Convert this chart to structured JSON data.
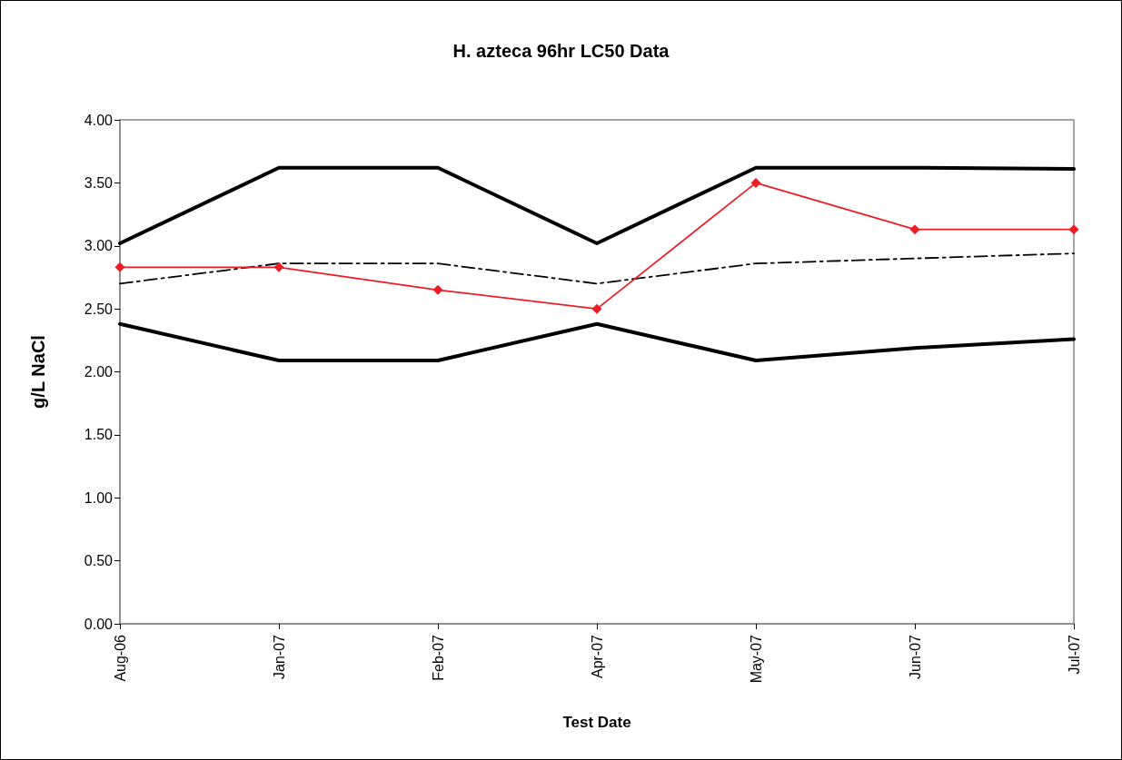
{
  "chart_data": {
    "type": "line",
    "title": "H. azteca 96hr LC50 Data",
    "xlabel": "Test Date",
    "ylabel": "g/L NaCl",
    "categories": [
      "Aug-06",
      "Jan-07",
      "Feb-07",
      "Apr-07",
      "May-07",
      "Jun-07",
      "Jul-07"
    ],
    "ylim": [
      0,
      4
    ],
    "yticks": [
      {
        "value": 0,
        "label": "0.00"
      },
      {
        "value": 0.5,
        "label": "0.50"
      },
      {
        "value": 1,
        "label": "1.00"
      },
      {
        "value": 1.5,
        "label": "1.50"
      },
      {
        "value": 2,
        "label": "2.00"
      },
      {
        "value": 2.5,
        "label": "2.50"
      },
      {
        "value": 3,
        "label": "3.00"
      },
      {
        "value": 3.5,
        "label": "3.50"
      },
      {
        "value": 4,
        "label": "4.00"
      }
    ],
    "grid": false,
    "series": [
      {
        "color": "#000000",
        "marker": "none",
        "line_style": "solid",
        "values": [
          3.02,
          3.62,
          3.62,
          3.02,
          3.62,
          3.62,
          3.61
        ]
      },
      {
        "color": "#000000",
        "marker": "none",
        "line_style": "solid",
        "values": [
          2.38,
          2.09,
          2.09,
          2.38,
          2.09,
          2.19,
          2.26
        ]
      },
      {
        "color": "#000000",
        "marker": "none",
        "line_style": "dashed",
        "values": [
          2.7,
          2.86,
          2.86,
          2.7,
          2.86,
          2.9,
          2.94
        ]
      },
      {
        "color": "#ee1c25",
        "marker": "diamond",
        "line_style": "solid",
        "values": [
          2.83,
          2.83,
          2.65,
          2.5,
          3.5,
          3.13,
          3.13
        ]
      }
    ]
  }
}
